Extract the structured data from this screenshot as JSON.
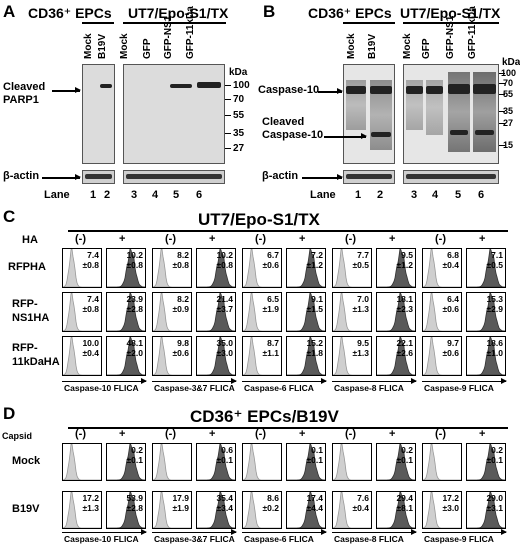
{
  "panelA": {
    "letter": "A",
    "header_left": "CD36⁺ EPCs",
    "header_right": "UT7/Epo-S1/TX",
    "lanes_left": [
      "Mock",
      "B19V"
    ],
    "lanes_right": [
      "Mock",
      "GFP",
      "GFP-NS1",
      "GFP-11kDa"
    ],
    "kda_label": "kDa",
    "markers": [
      "100",
      "70",
      "55",
      "35",
      "27"
    ],
    "target_label": "Cleaved PARP1",
    "loading_label": "β-actin",
    "lane_word": "Lane",
    "lane_numbers": [
      "1",
      "2",
      "3",
      "4",
      "5",
      "6"
    ]
  },
  "panelB": {
    "letter": "B",
    "header_left": "CD36⁺ EPCs",
    "header_right": "UT7/Epo-S1/TX",
    "lanes_left": [
      "Mock",
      "B19V"
    ],
    "lanes_right": [
      "Mock",
      "GFP",
      "GFP-NS1",
      "GFP-11kDa"
    ],
    "kda_label": "kDa",
    "markers": [
      "100",
      "70",
      "55",
      "35",
      "27",
      "15"
    ],
    "target_label": "Caspase-10",
    "cleaved_label_1": "Cleaved",
    "cleaved_label_2": "Caspase-10",
    "loading_label": "β-actin",
    "lane_word": "Lane",
    "lane_numbers": [
      "1",
      "2",
      "3",
      "4",
      "5",
      "6"
    ]
  },
  "panelC": {
    "letter": "C",
    "title": "UT7/Epo-S1/TX",
    "row_header": "HA",
    "neg": "(-)",
    "pos": "+",
    "rows": [
      "RFPHA",
      "RFP-NS1HA",
      "RFP-11kDaHA"
    ],
    "row_label_lines": [
      [
        "RFPHA"
      ],
      [
        "RFP-",
        "NS1HA"
      ],
      [
        "RFP-",
        "11kDaHA"
      ]
    ],
    "assays": [
      "Caspase-10 FLICA",
      "Caspase-3&7 FLICA",
      "Caspase-6 FLICA",
      "Caspase-8 FLICA",
      "Caspase-9 FLICA"
    ],
    "values": [
      [
        [
          "7.4",
          "±0.8",
          "10.2",
          "±0.8"
        ],
        [
          "8.2",
          "±0.8",
          "10.2",
          "±0.8"
        ],
        [
          "6.7",
          "±0.6",
          "7.2",
          "±1.2"
        ],
        [
          "7.7",
          "±0.5",
          "9.5",
          "±1.2"
        ],
        [
          "6.8",
          "±0.4",
          "7.1",
          "±0.5"
        ]
      ],
      [
        [
          "7.4",
          "±0.8",
          "23.9",
          "±2.8"
        ],
        [
          "8.2",
          "±0.9",
          "21.4",
          "±3.7"
        ],
        [
          "6.5",
          "±1.9",
          "9.1",
          "±1.5"
        ],
        [
          "7.0",
          "±1.3",
          "18.1",
          "±2.3"
        ],
        [
          "6.4",
          "±0.6",
          "15.3",
          "±2.9"
        ]
      ],
      [
        [
          "10.0",
          "±0.4",
          "48.1",
          "±2.0"
        ],
        [
          "9.8",
          "±0.6",
          "35.0",
          "±3.0"
        ],
        [
          "8.7",
          "±1.1",
          "15.2",
          "±1.8"
        ],
        [
          "9.5",
          "±1.3",
          "22.1",
          "±2.6"
        ],
        [
          "9.7",
          "±0.6",
          "18.6",
          "±1.0"
        ]
      ]
    ]
  },
  "panelD": {
    "letter": "D",
    "title": "CD36⁺ EPCs/B19V",
    "row_header": "Capsid",
    "neg": "(-)",
    "pos": "+",
    "rows": [
      "Mock",
      "B19V"
    ],
    "assays": [
      "Caspase-10 FLICA",
      "Caspase-3&7 FLICA",
      "Caspase-6 FLICA",
      "Caspase-8 FLICA",
      "Caspase-9 FLICA"
    ],
    "values": [
      [
        [
          "",
          "",
          "0.2",
          "±0.1"
        ],
        [
          "",
          "",
          "0.6",
          "±0.1"
        ],
        [
          "",
          "",
          "0.1",
          "±0.1"
        ],
        [
          "",
          "",
          "0.2",
          "±0.1"
        ],
        [
          "",
          "",
          "0.2",
          "±0.1"
        ]
      ],
      [
        [
          "17.2",
          "±1.3",
          "53.9",
          "±2.8"
        ],
        [
          "17.9",
          "±1.9",
          "35.4",
          "±3.4"
        ],
        [
          "8.6",
          "±0.2",
          "17.4",
          "±4.4"
        ],
        [
          "7.6",
          "±0.4",
          "29.4",
          "±8.1"
        ],
        [
          "17.2",
          "±3.0",
          "29.0",
          "±3.1"
        ]
      ]
    ]
  }
}
